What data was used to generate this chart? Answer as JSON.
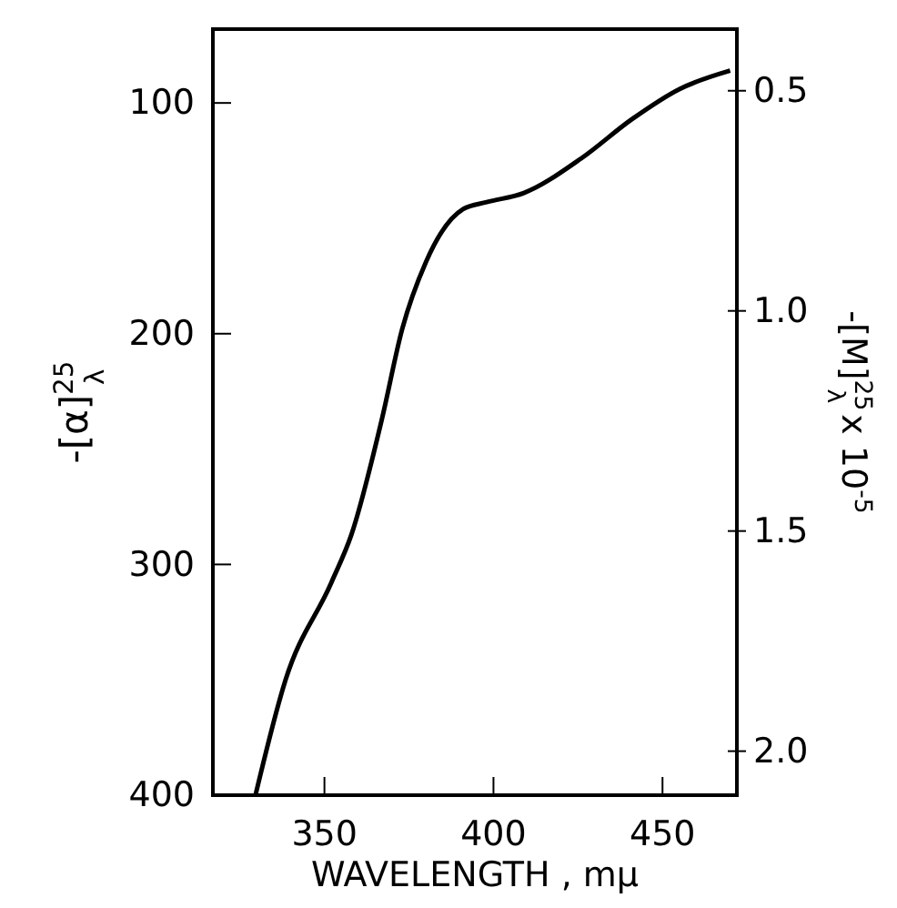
{
  "chart_data": {
    "type": "line",
    "xlabel": "WAVELENGTH , mμ",
    "ylabel": "-[α]$^{25}$$_{λ}$",
    "y2label": "-[M]$^{25}$$_{λ}$ x 10$^{-5}$",
    "x": [
      329.6,
      338.5,
      352,
      358,
      367,
      373,
      380,
      391,
      398,
      409,
      426,
      441,
      455,
      470
    ],
    "series": [
      {
        "color": "#000000",
        "values": [
          400,
          350,
          308,
          287,
          237,
          198,
          169,
          146,
          143,
          139,
          124,
          107,
          94,
          86
        ]
      }
    ],
    "xlim": [
      317,
      472
    ],
    "xticks": [
      350,
      400,
      450
    ],
    "ylim": [
      400,
      68
    ],
    "yticks": [
      100,
      200,
      300,
      400
    ],
    "y2lim": [
      2.1,
      0.36
    ],
    "y2ticks": [
      {
        "value": 0.5,
        "label": "0.5"
      },
      {
        "value": 1.0,
        "label": "1.0"
      },
      {
        "value": 1.5,
        "label": "1.5"
      },
      {
        "value": 2.0,
        "label": "2.0"
      }
    ],
    "grid": false
  }
}
